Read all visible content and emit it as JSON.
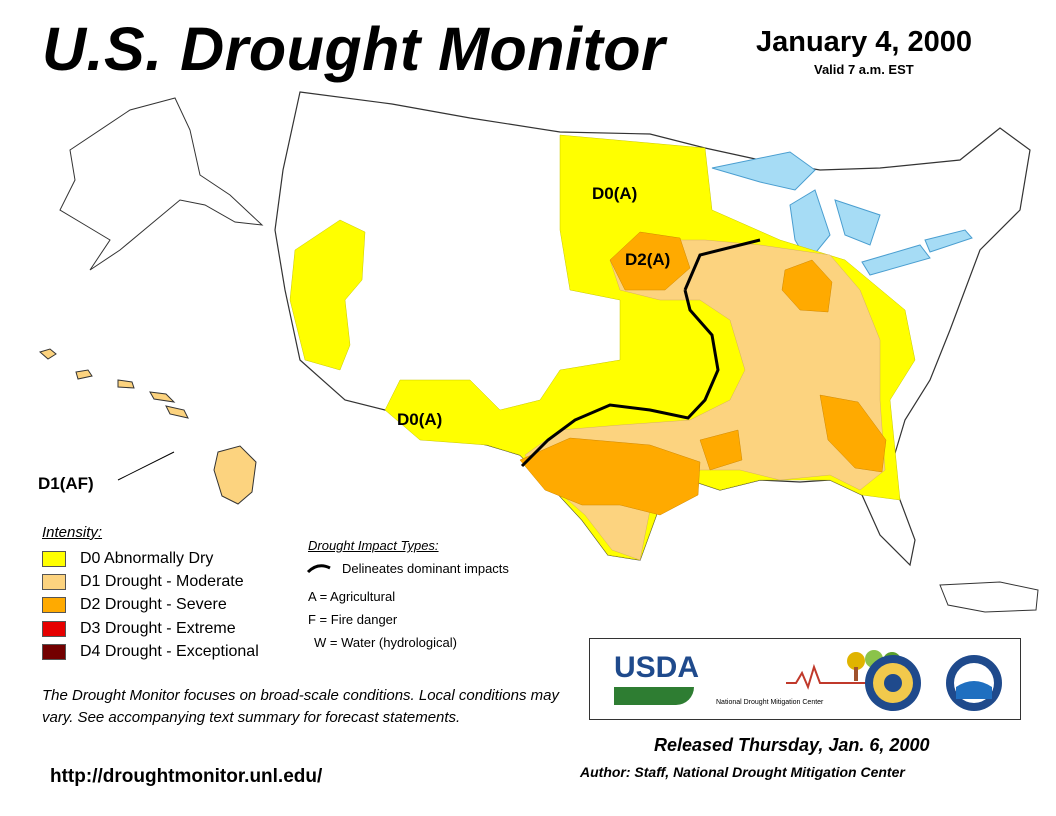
{
  "header": {
    "title": "U.S. Drought Monitor",
    "date": "January 4, 2000",
    "valid": "Valid 7 a.m. EST"
  },
  "map": {
    "labels": {
      "d0_north": "D0(A)",
      "d2_north": "D2(A)",
      "d0_southwest": "D0(A)",
      "hawaii": "D1(AF)"
    }
  },
  "legend": {
    "title": "Intensity:",
    "items": [
      {
        "label": "D0 Abnormally Dry",
        "color": "#ffff00"
      },
      {
        "label": "D1 Drought - Moderate",
        "color": "#fcd37f"
      },
      {
        "label": "D2 Drought - Severe",
        "color": "#ffaa00"
      },
      {
        "label": "D3 Drought - Extreme",
        "color": "#e60000"
      },
      {
        "label": "D4 Drought - Exceptional",
        "color": "#730000"
      }
    ]
  },
  "impacts": {
    "title": "Drought Impact Types:",
    "line_label": "Delineates dominant impacts",
    "types": [
      "A = Agricultural",
      "F = Fire danger",
      "W = Water (hydrological)"
    ]
  },
  "note": "The Drought Monitor focuses on broad-scale conditions. Local conditions may vary. See accompanying text summary for forecast statements.",
  "footer": {
    "url": "http://droughtmonitor.unl.edu/",
    "released": "Released Thursday, Jan. 6, 2000",
    "author": "Author: Staff, National Drought Mitigation Center"
  },
  "logos": {
    "usda": "USDA",
    "ndmc": "National Drought Mitigation Center"
  }
}
